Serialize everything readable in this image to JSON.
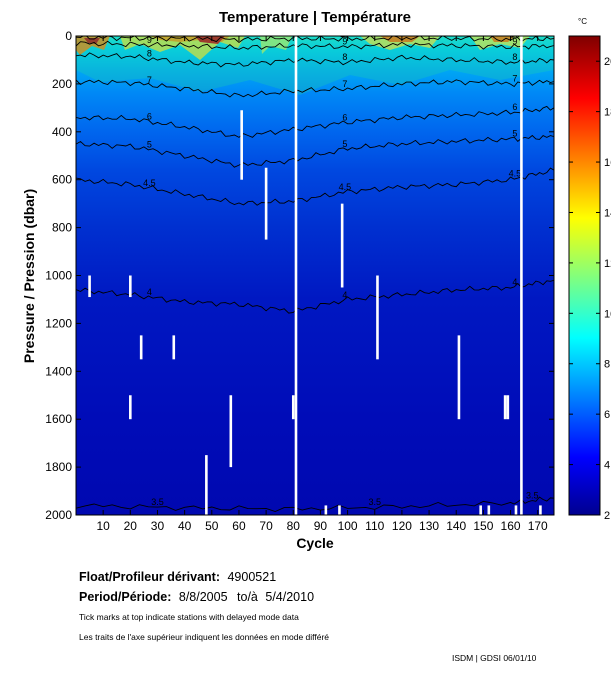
{
  "chart_data": {
    "type": "heatmap",
    "title": "Temperature | Température",
    "xlabel": "Cycle",
    "ylabel": "Pressure / Pression (dbar)",
    "xlim": [
      0,
      176
    ],
    "ylim": [
      2000,
      0
    ],
    "xticks": [
      10,
      20,
      30,
      40,
      50,
      60,
      70,
      80,
      90,
      100,
      110,
      120,
      130,
      140,
      150,
      160,
      170
    ],
    "yticks": [
      0,
      200,
      400,
      600,
      800,
      1000,
      1200,
      1400,
      1600,
      1800,
      2000
    ],
    "colorbar": {
      "unit": "°C",
      "min": 2,
      "max": 21,
      "ticks": [
        2,
        4,
        6,
        8,
        10,
        12,
        14,
        16,
        18,
        20
      ]
    },
    "isotherms": [
      {
        "level": 10,
        "label": "10",
        "points": [
          [
            0,
            5
          ],
          [
            20,
            8
          ],
          [
            40,
            10
          ],
          [
            60,
            15
          ],
          [
            80,
            10
          ],
          [
            100,
            12
          ],
          [
            120,
            8
          ],
          [
            140,
            10
          ],
          [
            160,
            14
          ],
          [
            176,
            10
          ]
        ]
      },
      {
        "level": 9,
        "label": "9",
        "points": [
          [
            0,
            30
          ],
          [
            20,
            35
          ],
          [
            40,
            40
          ],
          [
            60,
            50
          ],
          [
            80,
            40
          ],
          [
            100,
            45
          ],
          [
            120,
            35
          ],
          [
            140,
            40
          ],
          [
            160,
            45
          ],
          [
            176,
            40
          ]
        ]
      },
      {
        "level": 8,
        "label": "8",
        "points": [
          [
            0,
            80
          ],
          [
            20,
            85
          ],
          [
            40,
            110
          ],
          [
            60,
            120
          ],
          [
            80,
            100
          ],
          [
            100,
            110
          ],
          [
            120,
            90
          ],
          [
            140,
            100
          ],
          [
            160,
            110
          ],
          [
            176,
            100
          ]
        ]
      },
      {
        "level": 7,
        "label": "7",
        "points": [
          [
            0,
            190
          ],
          [
            20,
            195
          ],
          [
            40,
            220
          ],
          [
            60,
            250
          ],
          [
            80,
            230
          ],
          [
            100,
            220
          ],
          [
            120,
            200
          ],
          [
            140,
            190
          ],
          [
            160,
            200
          ],
          [
            176,
            190
          ]
        ]
      },
      {
        "level": 6,
        "label": "6",
        "points": [
          [
            0,
            340
          ],
          [
            20,
            345
          ],
          [
            40,
            380
          ],
          [
            60,
            420
          ],
          [
            80,
            390
          ],
          [
            100,
            360
          ],
          [
            120,
            340
          ],
          [
            140,
            330
          ],
          [
            160,
            320
          ],
          [
            176,
            300
          ]
        ]
      },
      {
        "level": 5,
        "label": "5",
        "points": [
          [
            0,
            450
          ],
          [
            20,
            460
          ],
          [
            40,
            500
          ],
          [
            60,
            540
          ],
          [
            80,
            520
          ],
          [
            100,
            470
          ],
          [
            120,
            450
          ],
          [
            140,
            440
          ],
          [
            160,
            430
          ],
          [
            176,
            420
          ]
        ]
      },
      {
        "level": 4.5,
        "label": "4.5",
        "points": [
          [
            0,
            600
          ],
          [
            20,
            620
          ],
          [
            40,
            660
          ],
          [
            60,
            700
          ],
          [
            80,
            690
          ],
          [
            100,
            650
          ],
          [
            120,
            630
          ],
          [
            140,
            620
          ],
          [
            160,
            600
          ],
          [
            176,
            560
          ]
        ]
      },
      {
        "level": 4,
        "label": "4",
        "points": [
          [
            0,
            1060
          ],
          [
            20,
            1080
          ],
          [
            40,
            1110
          ],
          [
            60,
            1120
          ],
          [
            80,
            1150
          ],
          [
            100,
            1100
          ],
          [
            120,
            1080
          ],
          [
            140,
            1060
          ],
          [
            160,
            1050
          ],
          [
            176,
            1020
          ]
        ]
      },
      {
        "level": 3.5,
        "label": "3.5",
        "points": [
          [
            0,
            1960
          ],
          [
            40,
            1970
          ],
          [
            80,
            1975
          ],
          [
            120,
            1965
          ],
          [
            160,
            1950
          ],
          [
            176,
            1930
          ]
        ]
      }
    ],
    "missing_profiles": [
      {
        "cycle": 5,
        "from": 1000,
        "to": 1090
      },
      {
        "cycle": 20,
        "from": 1000,
        "to": 1090
      },
      {
        "cycle": 20,
        "from": 1500,
        "to": 1600
      },
      {
        "cycle": 24,
        "from": 1250,
        "to": 1350
      },
      {
        "cycle": 36,
        "from": 1250,
        "to": 1350
      },
      {
        "cycle": 48,
        "from": 1750,
        "to": 2000
      },
      {
        "cycle": 57,
        "from": 1500,
        "to": 1800
      },
      {
        "cycle": 61,
        "from": 310,
        "to": 600
      },
      {
        "cycle": 70,
        "from": 550,
        "to": 850
      },
      {
        "cycle": 80,
        "from": 1500,
        "to": 1600
      },
      {
        "cycle": 81,
        "from": 0,
        "to": 2000
      },
      {
        "cycle": 98,
        "from": 700,
        "to": 1050
      },
      {
        "cycle": 111,
        "from": 1000,
        "to": 1350
      },
      {
        "cycle": 141,
        "from": 1250,
        "to": 1600
      },
      {
        "cycle": 158,
        "from": 1500,
        "to": 1600
      },
      {
        "cycle": 159,
        "from": 1500,
        "to": 1600
      },
      {
        "cycle": 164,
        "from": 0,
        "to": 2000
      },
      {
        "cycle": 92,
        "from": 1960,
        "to": 2000
      },
      {
        "cycle": 97,
        "from": 1960,
        "to": 2000
      },
      {
        "cycle": 149,
        "from": 1960,
        "to": 2000
      },
      {
        "cycle": 152,
        "from": 1960,
        "to": 2000
      },
      {
        "cycle": 162,
        "from": 1960,
        "to": 2000
      },
      {
        "cycle": 171,
        "from": 1960,
        "to": 2000
      }
    ]
  },
  "info": {
    "float_label": "Float/Profileur dérivant:",
    "float_value": "4900521",
    "period_label": "Period/Période:",
    "period_start": "8/8/2005",
    "period_to": "to/à",
    "period_end": "5/4/2010",
    "note_en": "Tick marks at top indicate stations with delayed mode data",
    "note_fr": "Les traits de l'axe supérieur indiquent les données en mode différé",
    "credit": "ISDM | GDSI 06/01/10"
  },
  "colors": {
    "deep_blue": "#0000b8",
    "mid_blue": "#0050e8",
    "cyan": "#00c0f0",
    "warm": "#ff6000",
    "gap": "#ffffff"
  }
}
